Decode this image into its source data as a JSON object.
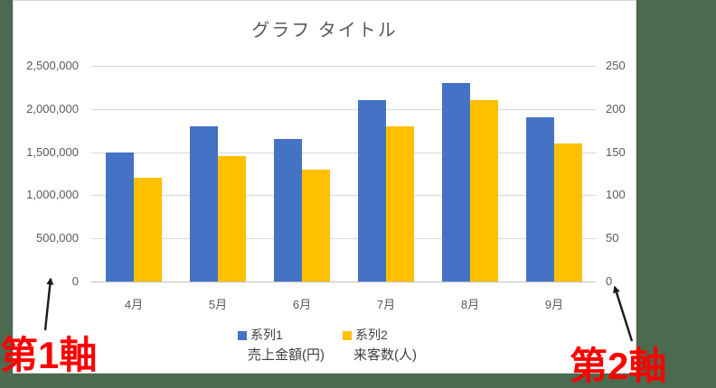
{
  "background_color": "#4a6b50",
  "chart_data": {
    "type": "bar",
    "title": "グラフ タイトル",
    "categories": [
      "4月",
      "5月",
      "6月",
      "7月",
      "8月",
      "9月"
    ],
    "series": [
      {
        "name": "系列1",
        "label": "売上金額(円)",
        "axis": "primary",
        "color": "#4472C4",
        "values": [
          1500000,
          1800000,
          1650000,
          2100000,
          2300000,
          1900000
        ]
      },
      {
        "name": "系列2",
        "label": "来客数(人)",
        "axis": "secondary",
        "color": "#FFC000",
        "values": [
          120,
          145,
          130,
          180,
          210,
          160
        ]
      }
    ],
    "primary_axis": {
      "min": 0,
      "max": 2500000,
      "step": 500000,
      "tick_labels": [
        "0",
        "500,000",
        "1,000,000",
        "1,500,000",
        "2,000,000",
        "2,500,000"
      ]
    },
    "secondary_axis": {
      "min": 0,
      "max": 250,
      "step": 50,
      "tick_labels": [
        "0",
        "50",
        "100",
        "150",
        "200",
        "250"
      ]
    },
    "grid": true,
    "legend_position": "bottom"
  },
  "annotations": {
    "first_axis_label": "第1軸",
    "second_axis_label": "第2軸",
    "label_color": "#ff0000",
    "arrow_color": "#1a1a1a"
  }
}
